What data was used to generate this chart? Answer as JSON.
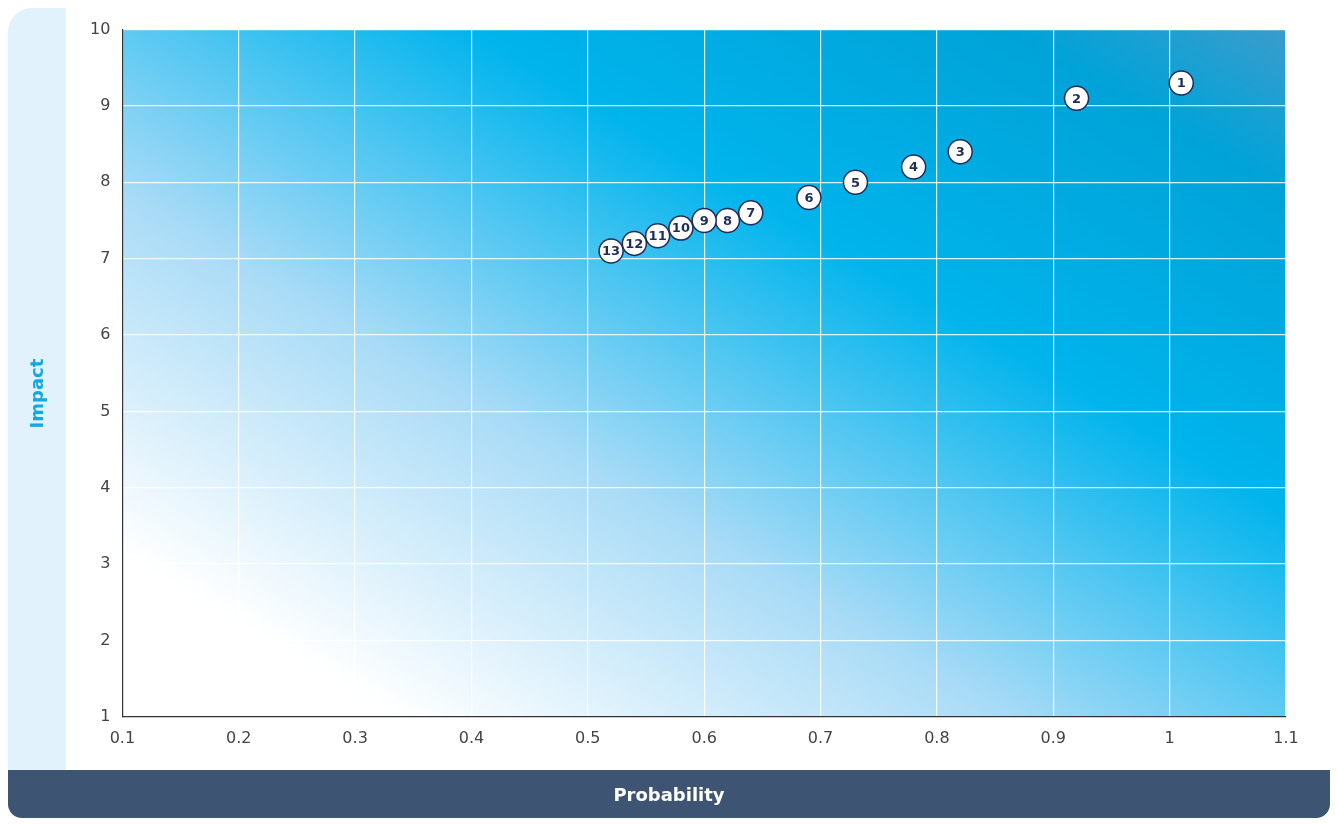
{
  "chart_data": {
    "type": "scatter",
    "xlabel": "Probability",
    "ylabel": "Impact",
    "xlim": [
      0.1,
      1.1
    ],
    "xticks": [
      0.1,
      0.2,
      0.3,
      0.4,
      0.5,
      0.6,
      0.7,
      0.8,
      0.9,
      1,
      1.1
    ],
    "ylim": [
      1,
      10
    ],
    "yticks": [
      1,
      2,
      3,
      4,
      5,
      6,
      7,
      8,
      9,
      10
    ],
    "grid": true,
    "legend": false,
    "marker": "circle",
    "series": [
      {
        "color": "#ffffff",
        "x": [
          1.01,
          0.92,
          0.82,
          0.78,
          0.73,
          0.69,
          0.64,
          0.62,
          0.6,
          0.58,
          0.56,
          0.54,
          0.52
        ],
        "values": [
          9.3,
          9.1,
          8.4,
          8.2,
          8.0,
          7.8,
          7.6,
          7.5,
          7.5,
          7.4,
          7.3,
          7.2,
          7.1
        ]
      }
    ],
    "annotations": [
      {
        "text": "1",
        "x": 1.01,
        "y": 9.3
      },
      {
        "text": "2",
        "x": 0.92,
        "y": 9.1
      },
      {
        "text": "3",
        "x": 0.82,
        "y": 8.4
      },
      {
        "text": "4",
        "x": 0.78,
        "y": 8.2
      },
      {
        "text": "5",
        "x": 0.73,
        "y": 8.0
      },
      {
        "text": "6",
        "x": 0.69,
        "y": 7.8
      },
      {
        "text": "7",
        "x": 0.64,
        "y": 7.6
      },
      {
        "text": "8",
        "x": 0.62,
        "y": 7.5
      },
      {
        "text": "9",
        "x": 0.6,
        "y": 7.5
      },
      {
        "text": "10",
        "x": 0.58,
        "y": 7.4
      },
      {
        "text": "11",
        "x": 0.56,
        "y": 7.3
      },
      {
        "text": "12",
        "x": 0.54,
        "y": 7.2
      },
      {
        "text": "13",
        "x": 0.52,
        "y": 7.1
      }
    ]
  }
}
